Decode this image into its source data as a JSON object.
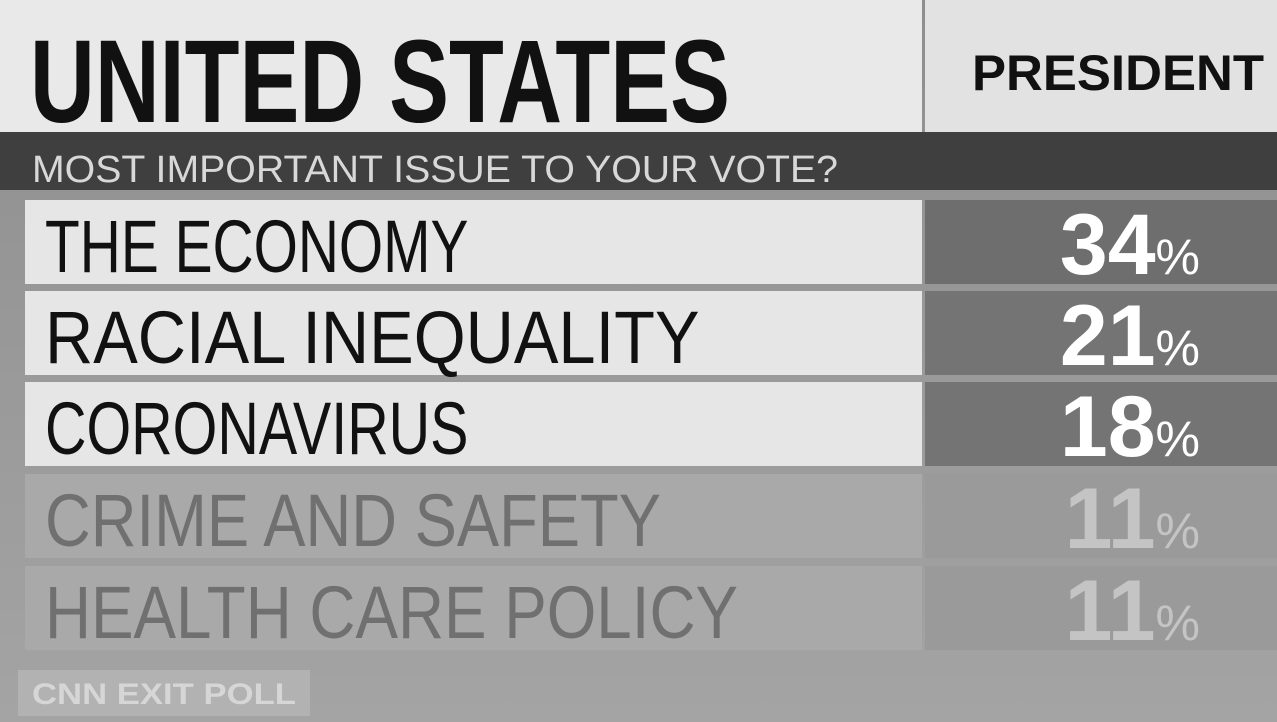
{
  "header": {
    "title": "UNITED STATES",
    "race": "PRESIDENT"
  },
  "question": "MOST IMPORTANT ISSUE TO YOUR VOTE?",
  "table": {
    "rows": [
      {
        "issue": "THE ECONOMY",
        "value": 34,
        "unit": "%"
      },
      {
        "issue": "RACIAL INEQUALITY",
        "value": 21,
        "unit": "%"
      },
      {
        "issue": "CORONAVIRUS",
        "value": 18,
        "unit": "%"
      },
      {
        "issue": "CRIME AND SAFETY",
        "value": 11,
        "unit": "%"
      },
      {
        "issue": "HEALTH CARE POLICY",
        "value": 11,
        "unit": "%"
      }
    ]
  },
  "footer": "CNN EXIT POLL"
}
